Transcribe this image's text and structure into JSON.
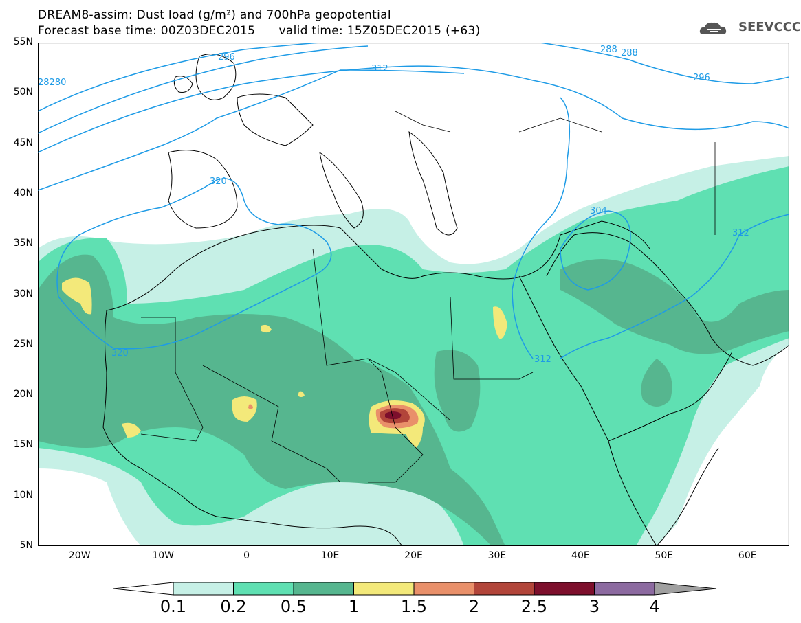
{
  "header": {
    "title_line1": "DREAM8-assim: Dust load (g/m²) and 700hPa geopotential",
    "title_line2_left": "Forecast base time: 00Z03DEC2015",
    "title_line2_right": "valid time: 15Z05DEC2015 (+63)",
    "logo_text": "SEEVCCC",
    "logo_icon": "cloud-logo-icon"
  },
  "axes": {
    "lat_labels": [
      "55N",
      "50N",
      "45N",
      "40N",
      "35N",
      "30N",
      "25N",
      "20N",
      "15N",
      "10N",
      "5N"
    ],
    "lat_values": [
      55,
      50,
      45,
      40,
      35,
      30,
      25,
      20,
      15,
      10,
      5
    ],
    "lon_labels": [
      "20W",
      "10W",
      "0",
      "10E",
      "20E",
      "30E",
      "40E",
      "50E",
      "60E"
    ],
    "lon_values": [
      -20,
      -10,
      0,
      10,
      20,
      30,
      40,
      50,
      60
    ],
    "lon_range": [
      -25,
      65
    ],
    "lat_range": [
      5,
      55
    ]
  },
  "contours": {
    "labels": [
      "28280",
      "296",
      "312",
      "320",
      "320",
      "288",
      "288",
      "296",
      "304",
      "312",
      "312"
    ]
  },
  "colorbar": {
    "tick_labels": [
      "0.1",
      "0.2",
      "0.5",
      "1",
      "1.5",
      "2",
      "2.5",
      "3",
      "4"
    ],
    "colors": [
      "#c6f0e6",
      "#5fe0b2",
      "#56b68f",
      "#f3e97a",
      "#e9906a",
      "#b2453a",
      "#7d0f2c",
      "#8c6aa0",
      "#a0a0a0"
    ],
    "under_color": "#ffffff",
    "over_color": "#a0a0a0"
  },
  "colors": {
    "contour": "#1e9be6",
    "coast": "#000000"
  }
}
